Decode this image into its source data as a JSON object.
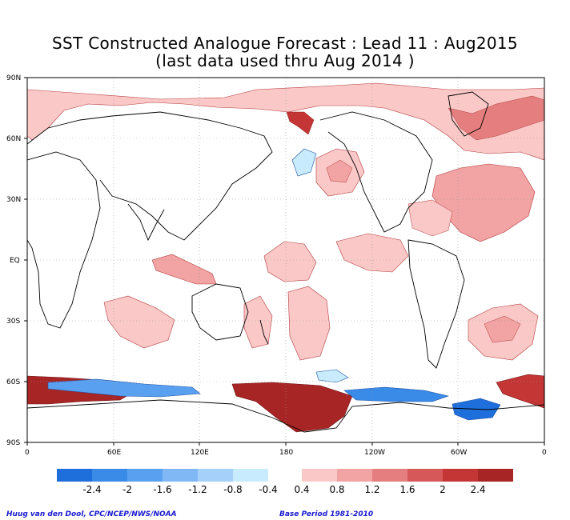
{
  "title": {
    "line1": "SST Constructed Analogue Forecast : Lead 11 : Aug2015",
    "line2": "(last data used thru Aug 2014 )"
  },
  "map": {
    "lat_labels": [
      "90N",
      "60N",
      "30N",
      "EQ",
      "30S",
      "60S",
      "90S"
    ],
    "lon_labels": [
      "0",
      "60E",
      "120E",
      "180",
      "120W",
      "60W",
      "0"
    ]
  },
  "colorbar": {
    "negative_colors": [
      "#1e6fdc",
      "#3a8ae8",
      "#5aa0f0",
      "#7fb8f5",
      "#a5d0fa",
      "#c8ecfd"
    ],
    "positive_colors": [
      "#fbc8c8",
      "#f2a3a3",
      "#e57f7f",
      "#d75858",
      "#c43535",
      "#a82525"
    ],
    "negative_labels": [
      "-2.4",
      "-2",
      "-1.6",
      "-1.2",
      "-0.8",
      "-0.4"
    ],
    "positive_labels": [
      "0.4",
      "0.8",
      "1.2",
      "1.6",
      "2",
      "2.4"
    ]
  },
  "credits": {
    "left": "Huug van den Dool, CPC/NCEP/NWS/NOAA",
    "right": "Base Period 1981-2010"
  }
}
